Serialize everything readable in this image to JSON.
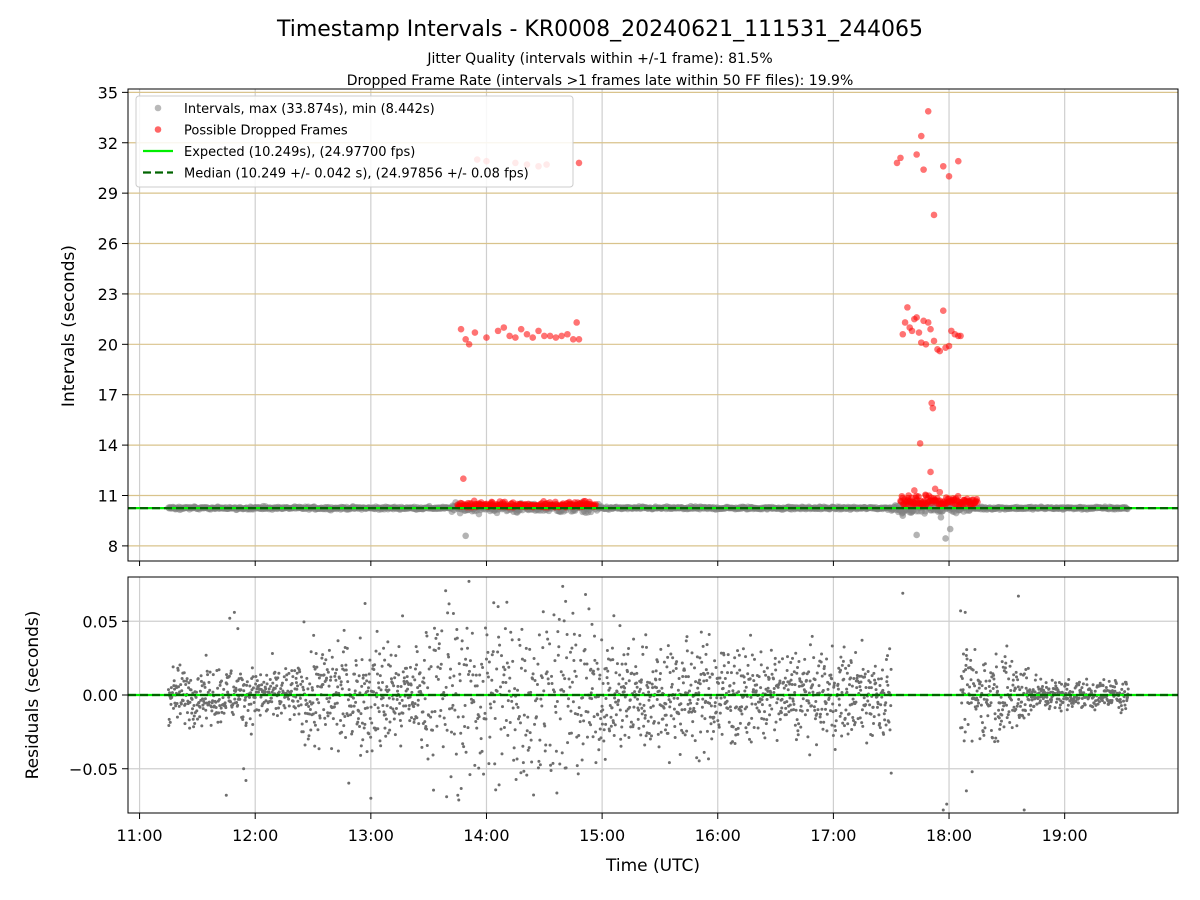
{
  "chart_data": {
    "type": "scatter",
    "title": "Timestamp Intervals - KR0008_20240621_111531_244065",
    "subtitle_lines": [
      "Jitter Quality (intervals within +/-1 frame): 81.5%",
      "Dropped Frame Rate (intervals >1 frames late within 50 FF files): 19.9%"
    ],
    "xlabel": "Time (UTC)",
    "x_tick_labels": [
      "11:00",
      "12:00",
      "13:00",
      "14:00",
      "15:00",
      "16:00",
      "17:00",
      "18:00",
      "19:00"
    ],
    "xlim_hours": [
      10.9,
      19.98
    ],
    "panels": [
      {
        "name": "intervals",
        "ylabel": "Intervals (seconds)",
        "ylim": [
          7.1,
          35.2
        ],
        "y_ticks": [
          8,
          11,
          14,
          17,
          20,
          23,
          26,
          29,
          32,
          35
        ],
        "y_tick_labels": [
          "8",
          "11",
          "14",
          "17",
          "20",
          "23",
          "26",
          "29",
          "32",
          "35"
        ],
        "grid_lines": "horizontal at every tick (tan), vertical at every hour (grey)",
        "legend_position": "top-left",
        "legend": [
          {
            "label": "Intervals, max (33.874s), min (8.442s)",
            "marker": "circle",
            "color": "#808080"
          },
          {
            "label": "Possible Dropped Frames",
            "marker": "circle",
            "color": "#ff0000"
          },
          {
            "label": "Expected (10.249s), (24.97700 fps)",
            "marker": "solid-line",
            "color": "#00ee00"
          },
          {
            "label": "Median (10.249 +/- 0.042 s), (24.97856 +/- 0.08 fps)",
            "marker": "dashed-line",
            "color": "#006400"
          }
        ],
        "expected_interval_s": 10.249,
        "median_interval_s": 10.249,
        "max_interval_s": 33.874,
        "min_interval_s": 8.442,
        "normal_interval_band": {
          "t_start_hours": 11.25,
          "t_end_hours": 19.55,
          "y_center": 10.249,
          "y_spread": 0.08
        },
        "normal_interval_outliers": [
          {
            "t": 13.82,
            "y": 8.6
          },
          {
            "t": 17.72,
            "y": 8.65
          },
          {
            "t": 17.97,
            "y": 8.442
          },
          {
            "t": 18.01,
            "y": 9.0
          },
          {
            "t": 17.6,
            "y": 9.8
          },
          {
            "t": 17.93,
            "y": 9.7
          }
        ],
        "dropped_frame_clusters": [
          {
            "t_start_hours": 13.75,
            "t_end_hours": 14.95,
            "y_center": 10.35,
            "y_spread": 0.3
          },
          {
            "t_start_hours": 17.58,
            "t_end_hours": 18.25,
            "y_center": 10.5,
            "y_spread": 0.5
          }
        ],
        "dropped_frames": [
          {
            "t": 13.8,
            "y": 12.0
          },
          {
            "t": 13.78,
            "y": 20.9
          },
          {
            "t": 13.82,
            "y": 20.3
          },
          {
            "t": 13.85,
            "y": 20.0
          },
          {
            "t": 13.9,
            "y": 20.7
          },
          {
            "t": 14.0,
            "y": 20.4
          },
          {
            "t": 14.1,
            "y": 20.8
          },
          {
            "t": 14.15,
            "y": 21.0
          },
          {
            "t": 14.2,
            "y": 20.5
          },
          {
            "t": 14.25,
            "y": 20.4
          },
          {
            "t": 14.3,
            "y": 20.9
          },
          {
            "t": 14.35,
            "y": 20.6
          },
          {
            "t": 14.4,
            "y": 20.4
          },
          {
            "t": 14.45,
            "y": 20.8
          },
          {
            "t": 14.5,
            "y": 20.5
          },
          {
            "t": 14.55,
            "y": 20.5
          },
          {
            "t": 14.6,
            "y": 20.4
          },
          {
            "t": 14.65,
            "y": 20.5
          },
          {
            "t": 14.7,
            "y": 20.6
          },
          {
            "t": 14.75,
            "y": 20.3
          },
          {
            "t": 14.78,
            "y": 21.3
          },
          {
            "t": 14.8,
            "y": 20.3
          },
          {
            "t": 13.92,
            "y": 31.0
          },
          {
            "t": 14.0,
            "y": 30.9
          },
          {
            "t": 14.25,
            "y": 30.8
          },
          {
            "t": 14.35,
            "y": 30.7
          },
          {
            "t": 14.45,
            "y": 30.6
          },
          {
            "t": 14.52,
            "y": 30.7
          },
          {
            "t": 14.8,
            "y": 30.8
          },
          {
            "t": 17.55,
            "y": 30.8
          },
          {
            "t": 17.58,
            "y": 31.1
          },
          {
            "t": 17.72,
            "y": 31.3
          },
          {
            "t": 17.76,
            "y": 32.4
          },
          {
            "t": 17.78,
            "y": 30.4
          },
          {
            "t": 17.82,
            "y": 33.874
          },
          {
            "t": 17.87,
            "y": 27.7
          },
          {
            "t": 17.95,
            "y": 30.6
          },
          {
            "t": 18.0,
            "y": 30.0
          },
          {
            "t": 18.08,
            "y": 30.9
          },
          {
            "t": 17.6,
            "y": 20.6
          },
          {
            "t": 17.62,
            "y": 21.3
          },
          {
            "t": 17.64,
            "y": 22.2
          },
          {
            "t": 17.66,
            "y": 21.0
          },
          {
            "t": 17.68,
            "y": 20.8
          },
          {
            "t": 17.7,
            "y": 21.5
          },
          {
            "t": 17.72,
            "y": 21.6
          },
          {
            "t": 17.74,
            "y": 20.7
          },
          {
            "t": 17.76,
            "y": 20.1
          },
          {
            "t": 17.78,
            "y": 21.4
          },
          {
            "t": 17.8,
            "y": 20.0
          },
          {
            "t": 17.82,
            "y": 21.3
          },
          {
            "t": 17.84,
            "y": 20.9
          },
          {
            "t": 17.87,
            "y": 20.2
          },
          {
            "t": 17.9,
            "y": 19.7
          },
          {
            "t": 17.92,
            "y": 19.6
          },
          {
            "t": 17.95,
            "y": 22.0
          },
          {
            "t": 17.97,
            "y": 19.8
          },
          {
            "t": 18.0,
            "y": 19.9
          },
          {
            "t": 18.02,
            "y": 20.8
          },
          {
            "t": 18.05,
            "y": 20.6
          },
          {
            "t": 18.08,
            "y": 20.5
          },
          {
            "t": 18.1,
            "y": 20.5
          },
          {
            "t": 17.85,
            "y": 16.5
          },
          {
            "t": 17.86,
            "y": 16.2
          },
          {
            "t": 17.75,
            "y": 14.1
          },
          {
            "t": 17.84,
            "y": 12.4
          },
          {
            "t": 17.88,
            "y": 11.4
          },
          {
            "t": 17.8,
            "y": 11.0
          },
          {
            "t": 17.92,
            "y": 11.2
          },
          {
            "t": 17.7,
            "y": 11.3
          },
          {
            "t": 17.65,
            "y": 11.0
          }
        ]
      },
      {
        "name": "residuals",
        "ylabel": "Residuals (seconds)",
        "ylim": [
          -0.08,
          0.08
        ],
        "y_ticks": [
          -0.05,
          0.0,
          0.05
        ],
        "y_tick_labels": [
          "−0.05",
          "0.00",
          "0.05"
        ],
        "grid_lines": "horizontal at every tick and vertical at every hour (grey)",
        "zero_line": {
          "expected": "solid green",
          "median": "dashed dark green"
        },
        "residual_segments": [
          {
            "t_start_hours": 11.25,
            "t_end_hours": 12.4,
            "spread": 0.022
          },
          {
            "t_start_hours": 12.4,
            "t_end_hours": 13.5,
            "spread": 0.045
          },
          {
            "t_start_hours": 13.5,
            "t_end_hours": 14.9,
            "spread": 0.08
          },
          {
            "t_start_hours": 14.9,
            "t_end_hours": 16.2,
            "spread": 0.045
          },
          {
            "t_start_hours": 16.2,
            "t_end_hours": 17.5,
            "spread": 0.035
          },
          {
            "t_start_hours": 18.1,
            "t_end_hours": 18.7,
            "spread": 0.035
          },
          {
            "t_start_hours": 18.7,
            "t_end_hours": 19.55,
            "spread": 0.012
          }
        ],
        "residual_outliers": [
          {
            "t": 11.82,
            "y": 0.056
          },
          {
            "t": 11.78,
            "y": 0.052
          },
          {
            "t": 11.85,
            "y": 0.045
          },
          {
            "t": 11.75,
            "y": -0.068
          },
          {
            "t": 11.9,
            "y": -0.05
          },
          {
            "t": 11.92,
            "y": -0.058
          },
          {
            "t": 12.95,
            "y": 0.062
          },
          {
            "t": 13.0,
            "y": -0.07
          },
          {
            "t": 18.6,
            "y": 0.067
          },
          {
            "t": 18.65,
            "y": -0.078
          },
          {
            "t": 17.95,
            "y": -0.078
          },
          {
            "t": 17.98,
            "y": -0.074
          },
          {
            "t": 18.1,
            "y": 0.057
          },
          {
            "t": 18.14,
            "y": 0.056
          },
          {
            "t": 17.6,
            "y": 0.069
          },
          {
            "t": 17.5,
            "y": -0.053
          },
          {
            "t": 18.2,
            "y": -0.052
          },
          {
            "t": 18.15,
            "y": -0.065
          }
        ]
      }
    ]
  }
}
